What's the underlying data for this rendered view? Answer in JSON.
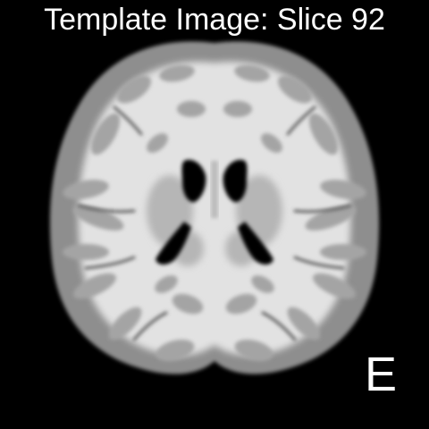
{
  "figure": {
    "title": "Template Image: Slice 92",
    "panel_label": "E"
  },
  "scan": {
    "type": "axial brain MRI template slice",
    "tissue": {
      "white_matter": "#e2e2e2",
      "gray_matter": "#8e8e8e",
      "dark_sulci": "#4a4a4a",
      "ventricles": "#050505",
      "background": "#000000"
    }
  }
}
